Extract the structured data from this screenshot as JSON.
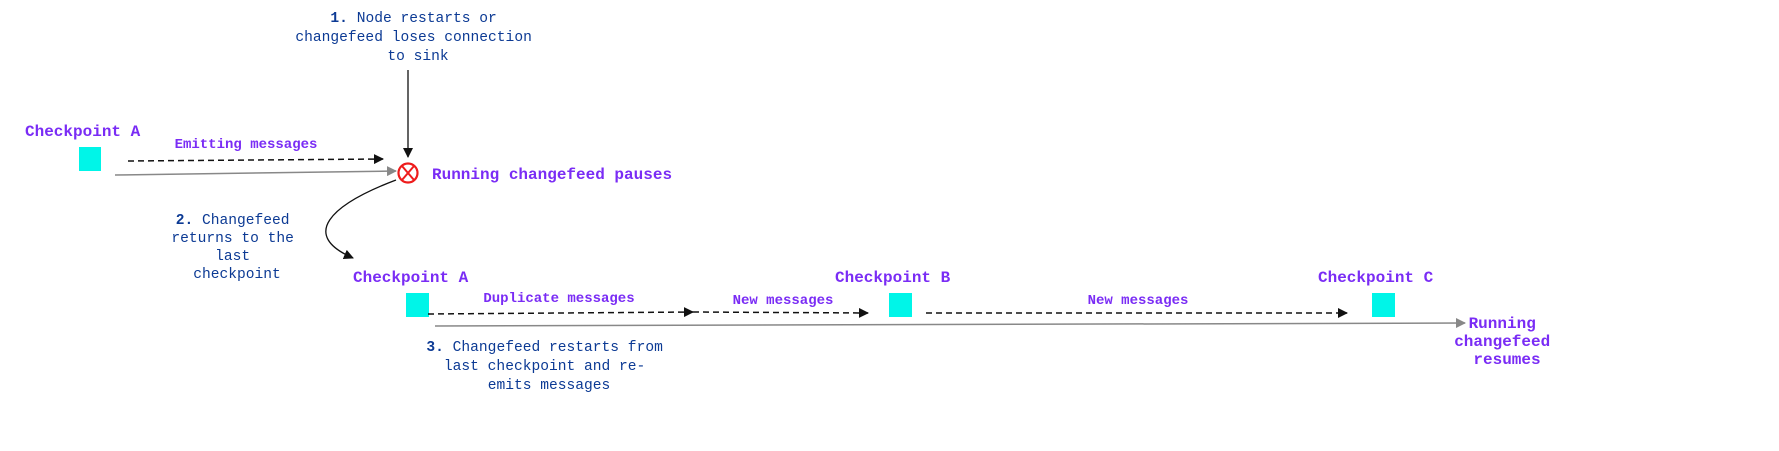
{
  "colors": {
    "label": "#7a2cf5",
    "note": "#0c3a94",
    "checkpoint": "#00f5e8",
    "pause_icon": "#ee1c1c",
    "timeline": "#888888",
    "arrow": "#111111"
  },
  "steps": [
    {
      "number": "1.",
      "lines": [
        "Node restarts or",
        "changefeed loses connection",
        "to sink"
      ]
    },
    {
      "number": "2.",
      "lines": [
        "Changefeed",
        "returns to the",
        "last",
        "checkpoint"
      ]
    },
    {
      "number": "3.",
      "lines": [
        "Changefeed restarts from",
        "last checkpoint and re-",
        "emits messages"
      ]
    }
  ],
  "before": {
    "checkpoint": "Checkpoint A",
    "edge": "Emitting messages",
    "pause_label": "Running changefeed pauses",
    "pause_icon": "circled-x-icon"
  },
  "after": {
    "checkpoints": [
      "Checkpoint A",
      "Checkpoint B",
      "Checkpoint C"
    ],
    "edges": [
      "Duplicate messages",
      "New messages",
      "New messages"
    ],
    "resume_label": [
      "Running",
      "changefeed",
      "resumes"
    ]
  }
}
